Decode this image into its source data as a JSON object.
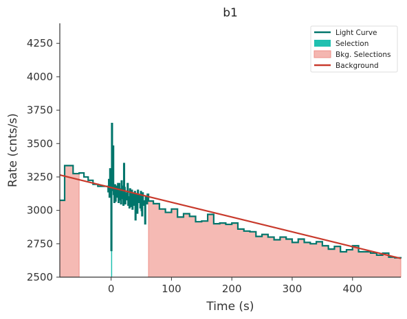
{
  "chart_data": {
    "type": "line",
    "title": "b1",
    "xlabel": "Time (s)",
    "ylabel": "Rate (cnts/s)",
    "xlim": [
      -85,
      480
    ],
    "ylim": [
      2500,
      4400
    ],
    "xticks": [
      0,
      100,
      200,
      300,
      400
    ],
    "yticks": [
      2500,
      2750,
      3000,
      3250,
      3500,
      3750,
      4000,
      4250
    ],
    "legend": {
      "placement": "top-right",
      "entries": [
        {
          "label": "Light Curve",
          "kind": "line",
          "color": "#00756b"
        },
        {
          "label": "Selection",
          "kind": "patch",
          "color": "#20c0b0"
        },
        {
          "label": "Bkg. Selections",
          "kind": "patch",
          "color": "#f4b6b0"
        },
        {
          "label": "Background",
          "kind": "line",
          "color": "#c8392b"
        }
      ]
    },
    "background_model": {
      "name": "Background",
      "color": "#c8392b",
      "x": [
        -85,
        480
      ],
      "y": [
        3265,
        2640
      ]
    },
    "bkg_selections": [
      [
        -85,
        -53
      ],
      [
        62,
        480
      ]
    ],
    "selection": [
      [
        0,
        1
      ]
    ],
    "light_curve": {
      "name": "Light Curve",
      "color": "#00756b",
      "x": [
        -85,
        -77,
        -63,
        -53,
        -45,
        -38,
        -30,
        -22,
        -12,
        -5,
        -4,
        -3,
        -2,
        -1,
        0,
        1,
        2,
        3,
        4,
        5,
        6,
        7,
        8,
        9,
        10,
        11,
        12,
        13,
        14,
        15,
        16,
        17,
        18,
        19,
        20,
        21,
        22,
        23,
        24,
        25,
        26,
        27,
        28,
        29,
        30,
        31,
        32,
        33,
        34,
        35,
        36,
        37,
        38,
        39,
        40,
        41,
        42,
        43,
        44,
        45,
        46,
        47,
        48,
        49,
        50,
        51,
        52,
        53,
        54,
        55,
        56,
        57,
        58,
        60,
        62,
        70,
        80,
        90,
        100,
        110,
        120,
        130,
        140,
        150,
        160,
        170,
        180,
        190,
        200,
        210,
        220,
        230,
        240,
        250,
        260,
        270,
        280,
        290,
        300,
        310,
        320,
        330,
        340,
        350,
        360,
        370,
        380,
        390,
        400,
        410,
        420,
        430,
        440,
        450,
        460,
        470,
        480
      ],
      "y": [
        3075,
        3335,
        3275,
        3280,
        3250,
        3225,
        3195,
        3180,
        3180,
        3140,
        3230,
        3100,
        3310,
        3140,
        2700,
        3650,
        3150,
        3480,
        3120,
        3060,
        3190,
        3070,
        3180,
        3100,
        3150,
        3200,
        3060,
        3200,
        3080,
        3160,
        3050,
        3220,
        3180,
        3090,
        3040,
        3350,
        3170,
        3050,
        3130,
        3120,
        3080,
        3200,
        3040,
        3100,
        3020,
        3160,
        3030,
        3080,
        3150,
        3010,
        3120,
        3060,
        3040,
        3140,
        2930,
        3090,
        3120,
        2980,
        3150,
        3060,
        3070,
        3110,
        3020,
        3140,
        3000,
        2960,
        3130,
        3050,
        3040,
        3070,
        2900,
        3100,
        3050,
        3120,
        3070,
        3050,
        3010,
        2985,
        3010,
        2950,
        2975,
        2955,
        2915,
        2920,
        2970,
        2900,
        2905,
        2895,
        2905,
        2860,
        2845,
        2840,
        2805,
        2820,
        2800,
        2780,
        2800,
        2785,
        2760,
        2785,
        2760,
        2750,
        2765,
        2735,
        2710,
        2730,
        2690,
        2705,
        2735,
        2690,
        2690,
        2680,
        2665,
        2680,
        2650,
        2645,
        2640
      ]
    }
  }
}
